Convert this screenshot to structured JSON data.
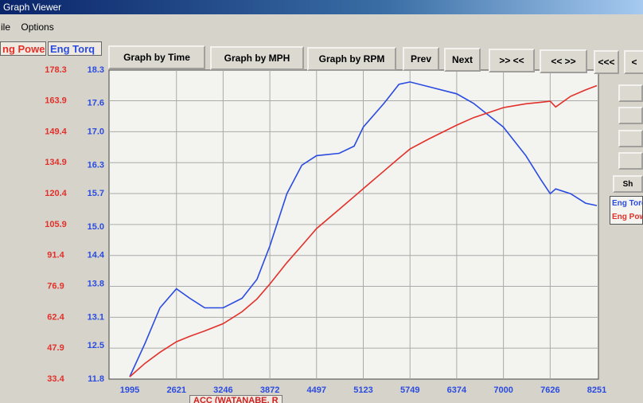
{
  "window": {
    "title": "Graph Viewer",
    "menu": [
      "ile",
      "Options"
    ]
  },
  "buttons": [
    "Graph by Time",
    "Graph by MPH",
    "Graph by RPM",
    "Prev",
    "Next",
    ">> <<",
    "<< >>",
    "<<<",
    "<"
  ],
  "side_button": "Sh",
  "status": "ACC (WATANABE, R",
  "chart_data": {
    "type": "line",
    "y_label": "ng Powe",
    "y2_label": "Eng Torq",
    "x": [
      1995,
      2200,
      2400,
      2621,
      2800,
      3000,
      3246,
      3500,
      3700,
      3872,
      4100,
      4300,
      4497,
      4800,
      5000,
      5123,
      5400,
      5600,
      5749,
      6000,
      6374,
      6600,
      7000,
      7300,
      7500,
      7626,
      7700,
      7900,
      8100,
      8251
    ],
    "xlim": [
      1995,
      8251
    ],
    "xticks": [
      1995,
      2621,
      3246,
      3872,
      4497,
      5123,
      5749,
      6374,
      7000,
      7626,
      8251
    ],
    "ylim": [
      33.4,
      178.3
    ],
    "yticks": [
      33.4,
      47.9,
      62.4,
      76.9,
      91.4,
      105.9,
      120.4,
      134.9,
      149.4,
      163.9,
      178.3
    ],
    "y2lim": [
      11.8,
      18.3
    ],
    "y2ticks": [
      11.8,
      12.5,
      13.1,
      13.8,
      14.4,
      {
        "value": 15,
        "label": "15.0"
      },
      15.7,
      16.3,
      {
        "value": 17,
        "label": "17.0"
      },
      17.6,
      18.3
    ],
    "grid": true,
    "series": [
      {
        "name": "Eng Torq",
        "color": "#2a4be0",
        "axis": "y2",
        "values": [
          11.85,
          12.55,
          13.3,
          13.7,
          13.5,
          13.3,
          13.3,
          13.5,
          13.9,
          14.6,
          15.7,
          16.3,
          16.5,
          16.55,
          16.7,
          17.1,
          17.6,
          18.0,
          18.05,
          17.95,
          17.8,
          17.6,
          17.1,
          16.5,
          16.0,
          15.7,
          15.8,
          15.7,
          15.5,
          15.45
        ]
      },
      {
        "name": "Eng Pow",
        "color": "#e2302a",
        "values": [
          34.5,
          40.8,
          46,
          50.9,
          53.5,
          56,
          59.4,
          65,
          71,
          78,
          88,
          96,
          104,
          113,
          119,
          122.7,
          131,
          137,
          141.3,
          146,
          152.5,
          156,
          160.7,
          162.5,
          163.2,
          163.7,
          161,
          166,
          169,
          171
        ]
      }
    ]
  }
}
